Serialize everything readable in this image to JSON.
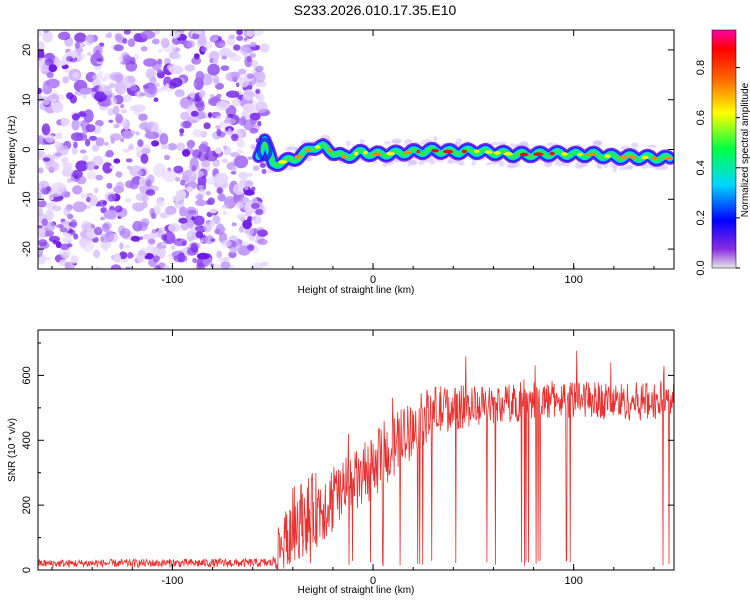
{
  "title": "S233.2026.010.17.35.E10",
  "chart_data": [
    {
      "type": "heatmap",
      "xlabel": "Height of straight line (km)",
      "ylabel": "Frequency (Hz)",
      "xlim": [
        -167,
        150
      ],
      "ylim": [
        -24,
        24
      ],
      "x_ticks": [
        "-100",
        "0",
        "100"
      ],
      "y_ticks": [
        "-20",
        "-10",
        "0",
        "10",
        "20"
      ],
      "noise_region_x": [
        -167,
        -57
      ],
      "signal_trace": {
        "x": [
          -57,
          -54,
          -50,
          -45,
          -40,
          -35,
          -30,
          -25,
          -20,
          -15,
          -10,
          -5,
          0,
          10,
          20,
          30,
          40,
          50,
          60,
          70,
          80,
          90,
          100,
          110,
          120,
          130,
          140,
          148
        ],
        "freq": [
          -1,
          2,
          -3,
          -2.5,
          -2,
          -1,
          0.5,
          0.5,
          -0.5,
          -1.5,
          -1,
          -0.5,
          -1,
          -0.8,
          -0.5,
          -0.2,
          -0.5,
          -0.3,
          -0.6,
          -1,
          -1,
          -0.8,
          -1,
          -1,
          -1.5,
          -1.5,
          -1.7,
          -1.8
        ]
      },
      "colorbar": {
        "label": "Normalized spectral amplitude",
        "range": [
          0,
          0.95
        ],
        "ticks": [
          "0.0",
          "0.2",
          "0.4",
          "0.6",
          "0.8"
        ]
      }
    },
    {
      "type": "line",
      "xlabel": "Height of straight line (km)",
      "ylabel": "SNR (10 * v/v)",
      "xlim": [
        -167,
        150
      ],
      "ylim": [
        0,
        740
      ],
      "x_ticks": [
        "-100",
        "0",
        "100"
      ],
      "y_ticks": [
        "0",
        "200",
        "400",
        "600"
      ],
      "series": [
        {
          "color": "#e83030",
          "envelope_x": [
            -167,
            -50,
            -47,
            -40,
            -30,
            -20,
            -10,
            0,
            10,
            20,
            30,
            40,
            60,
            80,
            100,
            120,
            140,
            150
          ],
          "envelope_base": [
            20,
            22,
            60,
            140,
            180,
            220,
            260,
            320,
            380,
            440,
            490,
            500,
            510,
            520,
            530,
            520,
            520,
            530
          ],
          "envelope_amp": [
            12,
            14,
            80,
            120,
            120,
            110,
            100,
            100,
            100,
            90,
            80,
            70,
            60,
            60,
            60,
            60,
            60,
            60
          ]
        }
      ]
    }
  ]
}
